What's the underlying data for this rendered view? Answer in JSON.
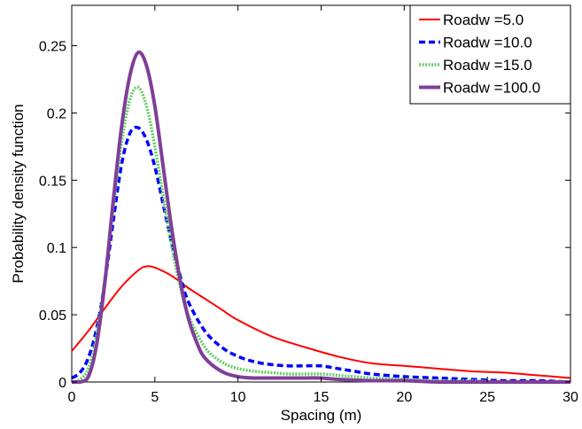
{
  "chart_data": {
    "type": "line",
    "title": "",
    "xlabel": "Spacing (m)",
    "ylabel": "Probability density function",
    "xlim": [
      0,
      30
    ],
    "ylim": [
      0,
      0.28
    ],
    "xticks": [
      0,
      5,
      10,
      15,
      20,
      25,
      30
    ],
    "yticks": [
      0,
      0.05,
      0.1,
      0.15,
      0.2,
      0.25
    ],
    "xtick_labels": [
      "0",
      "5",
      "10",
      "15",
      "20",
      "25",
      "30"
    ],
    "ytick_labels": [
      "0",
      "0.05",
      "0.1",
      "0.15",
      "0.2",
      "0.25"
    ],
    "grid": false,
    "legend_position": "top-right",
    "series": [
      {
        "name": "Roadw =5.0",
        "color": "#ff0000",
        "style": "solid",
        "x": [
          0,
          1,
          2,
          3,
          4,
          4.5,
          5,
          6,
          7,
          8,
          9,
          10,
          12,
          14,
          16,
          18,
          20,
          21,
          22,
          24,
          26,
          28,
          30
        ],
        "y": [
          0.023,
          0.038,
          0.055,
          0.071,
          0.083,
          0.086,
          0.085,
          0.079,
          0.07,
          0.062,
          0.054,
          0.046,
          0.034,
          0.026,
          0.019,
          0.014,
          0.012,
          0.011,
          0.01,
          0.008,
          0.007,
          0.005,
          0.003
        ]
      },
      {
        "name": "Roadw =10.0",
        "color": "#0000ff",
        "style": "dashed",
        "x": [
          0,
          0.5,
          1,
          1.5,
          2,
          2.5,
          3,
          3.5,
          4,
          4.5,
          5,
          5.5,
          6,
          6.5,
          7,
          8,
          9,
          10,
          11,
          12,
          13,
          14,
          15,
          16,
          17,
          18,
          20,
          22,
          24,
          26,
          28,
          30
        ],
        "y": [
          0.003,
          0.007,
          0.018,
          0.04,
          0.075,
          0.12,
          0.162,
          0.185,
          0.189,
          0.18,
          0.16,
          0.132,
          0.104,
          0.08,
          0.06,
          0.038,
          0.026,
          0.019,
          0.015,
          0.013,
          0.012,
          0.012,
          0.012,
          0.01,
          0.008,
          0.006,
          0.004,
          0.003,
          0.002,
          0.001,
          0.001,
          0.0
        ]
      },
      {
        "name": "Roadw =15.0",
        "color": "#66cc66",
        "style": "dotted",
        "x": [
          0,
          0.5,
          1,
          1.5,
          2,
          2.5,
          3,
          3.5,
          4,
          4.5,
          5,
          5.5,
          6,
          6.5,
          7,
          8,
          9,
          10,
          11,
          12,
          13,
          14,
          15,
          16,
          18,
          20,
          22,
          24,
          26,
          28,
          30
        ],
        "y": [
          0.0,
          0.002,
          0.01,
          0.035,
          0.078,
          0.13,
          0.178,
          0.21,
          0.219,
          0.205,
          0.175,
          0.138,
          0.102,
          0.072,
          0.05,
          0.026,
          0.015,
          0.01,
          0.008,
          0.007,
          0.006,
          0.006,
          0.006,
          0.005,
          0.003,
          0.002,
          0.001,
          0.001,
          0.0,
          0.0,
          0.0
        ]
      },
      {
        "name": "Roadw =100.0",
        "color": "#7f3f98",
        "style": "solid-thick",
        "x": [
          0,
          0.5,
          1,
          1.5,
          2,
          2.5,
          3,
          3.5,
          4,
          4.5,
          5,
          5.5,
          6,
          6.5,
          7,
          7.5,
          8,
          9,
          10,
          11,
          12,
          13,
          14,
          15,
          16,
          18,
          20,
          22,
          24,
          26,
          28,
          30
        ],
        "y": [
          0.0,
          0.0,
          0.004,
          0.028,
          0.075,
          0.135,
          0.19,
          0.228,
          0.245,
          0.235,
          0.205,
          0.16,
          0.115,
          0.077,
          0.048,
          0.03,
          0.018,
          0.008,
          0.004,
          0.003,
          0.003,
          0.003,
          0.003,
          0.003,
          0.002,
          0.001,
          0.001,
          0.0,
          0.0,
          0.0,
          0.0,
          0.0
        ]
      }
    ]
  }
}
